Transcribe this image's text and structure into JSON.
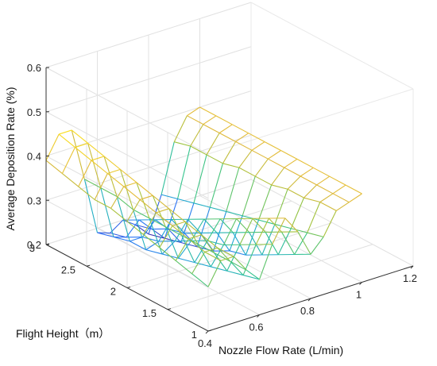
{
  "chart_data": {
    "type": "surface-mesh",
    "x": {
      "label": "Nozzle Flow Rate (L/min)",
      "range": [
        0.4,
        1.2
      ],
      "ticks": [
        0.4,
        0.6,
        0.8,
        1,
        1.2
      ],
      "tick_labels": [
        "0.4",
        "0.6",
        "0.8",
        "1",
        "1.2"
      ]
    },
    "y": {
      "label": "Flight Height（m）",
      "range": [
        1,
        3
      ],
      "ticks": [
        1,
        1.5,
        2,
        2.5,
        3
      ],
      "tick_labels": [
        "1",
        "1.5",
        "2",
        "2.5",
        "3"
      ]
    },
    "z": {
      "label": "Average Deposition Rate (%)",
      "range": [
        0.2,
        0.6
      ],
      "ticks": [
        0.2,
        0.3,
        0.4,
        0.5,
        0.6
      ],
      "tick_labels": [
        "0.2",
        "0.3",
        "0.4",
        "0.5",
        "0.6"
      ]
    },
    "grid": true,
    "colormap": [
      "#3e26a8",
      "#2d72f7",
      "#1ea9d0",
      "#33c48c",
      "#99c33c",
      "#e1b93a",
      "#f9de20"
    ],
    "surface_x": [
      0.4,
      0.45,
      0.5,
      0.55,
      0.6,
      0.65,
      0.7,
      0.75,
      0.8,
      0.85,
      0.9,
      0.95,
      1.0
    ],
    "surface_y": [
      1,
      1.2,
      1.4,
      1.6,
      1.8,
      2.0,
      2.2,
      2.4,
      2.6,
      2.8,
      3.0
    ],
    "surface_z": [
      [
        0.3,
        0.35,
        0.35,
        0.31,
        0.28,
        0.35,
        0.4,
        0.36,
        0.3,
        0.33,
        0.38,
        0.39,
        0.4
      ],
      [
        0.31,
        0.35,
        0.35,
        0.31,
        0.27,
        0.33,
        0.38,
        0.34,
        0.28,
        0.32,
        0.38,
        0.39,
        0.4
      ],
      [
        0.32,
        0.36,
        0.36,
        0.31,
        0.26,
        0.31,
        0.36,
        0.32,
        0.26,
        0.31,
        0.37,
        0.39,
        0.4
      ],
      [
        0.33,
        0.37,
        0.37,
        0.31,
        0.25,
        0.29,
        0.34,
        0.3,
        0.24,
        0.3,
        0.37,
        0.39,
        0.4
      ],
      [
        0.34,
        0.38,
        0.38,
        0.31,
        0.24,
        0.28,
        0.32,
        0.28,
        0.22,
        0.29,
        0.36,
        0.39,
        0.4
      ],
      [
        0.35,
        0.39,
        0.39,
        0.31,
        0.23,
        0.26,
        0.3,
        0.26,
        0.21,
        0.28,
        0.36,
        0.39,
        0.4
      ],
      [
        0.36,
        0.4,
        0.4,
        0.31,
        0.22,
        0.24,
        0.28,
        0.24,
        0.19,
        0.27,
        0.36,
        0.39,
        0.4
      ],
      [
        0.36,
        0.41,
        0.41,
        0.31,
        0.21,
        0.22,
        0.26,
        0.22,
        0.18,
        0.26,
        0.35,
        0.39,
        0.4
      ],
      [
        0.37,
        0.42,
        0.42,
        0.32,
        0.21,
        0.21,
        0.24,
        0.21,
        0.17,
        0.25,
        0.35,
        0.39,
        0.4
      ],
      [
        0.38,
        0.43,
        0.43,
        0.32,
        0.2,
        0.19,
        0.22,
        0.19,
        0.16,
        0.24,
        0.35,
        0.39,
        0.4
      ],
      [
        0.39,
        0.44,
        0.44,
        0.32,
        0.19,
        0.18,
        0.2,
        0.18,
        0.15,
        0.23,
        0.34,
        0.39,
        0.4
      ]
    ]
  }
}
